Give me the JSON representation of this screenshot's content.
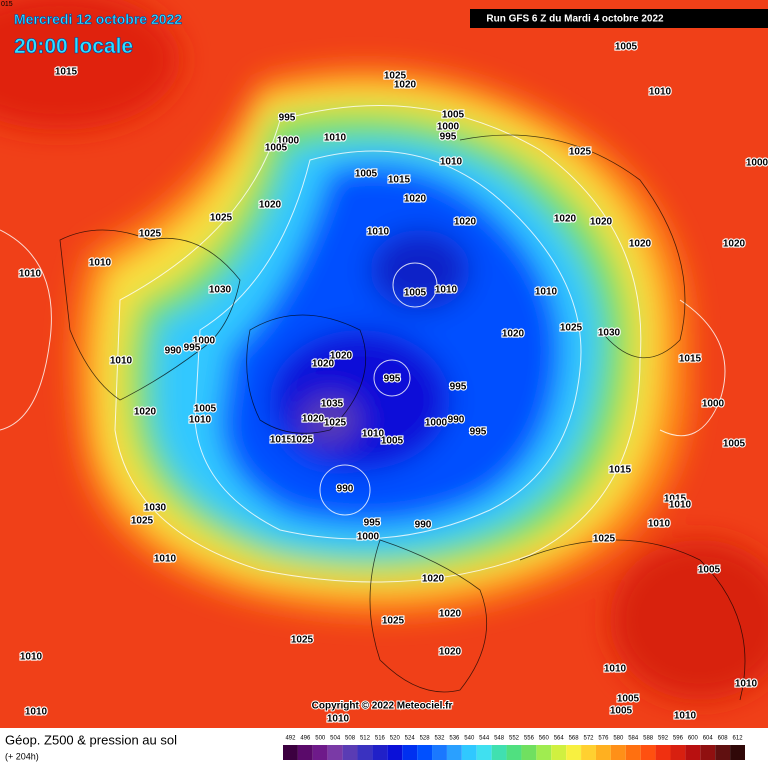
{
  "header": {
    "date": "Mercredi 12 octobre 2022",
    "time": "20:00 locale",
    "run": "Run GFS 6 Z du Mardi 4 octobre 2022",
    "corner": "015"
  },
  "copyright": "Copyright © 2022 Meteociel.fr",
  "legend": {
    "title": "Géop. Z500 & pression au sol",
    "subtitle": "(+ 204h)",
    "scale": [
      492,
      496,
      500,
      504,
      508,
      512,
      516,
      520,
      524,
      528,
      532,
      536,
      540,
      544,
      548,
      552,
      556,
      560,
      564,
      568,
      572,
      576,
      580,
      584,
      588,
      592,
      596,
      600,
      604,
      608,
      612
    ],
    "colors": [
      "#3c0040",
      "#5a0a6a",
      "#6e1a8a",
      "#7a3aa6",
      "#5a3cb4",
      "#3a32c0",
      "#2020c8",
      "#0a10d8",
      "#0030f0",
      "#0050ff",
      "#1a78ff",
      "#2aa0ff",
      "#30c8ff",
      "#40e0f0",
      "#40e0b0",
      "#50e080",
      "#70e060",
      "#a0ec50",
      "#d0f040",
      "#f8f040",
      "#ffd030",
      "#ffb020",
      "#ff9018",
      "#ff7010",
      "#ff5010",
      "#f03010",
      "#d82010",
      "#b81010",
      "#901010",
      "#601010",
      "#300808"
    ]
  },
  "isobars": [
    "1005",
    "1010",
    "1015",
    "1025",
    "1020",
    "995",
    "1005",
    "1000",
    "995",
    "1010",
    "1000",
    "1005",
    "1025",
    "1010",
    "1000",
    "1005",
    "1015",
    "1020",
    "1020",
    "1025",
    "1020",
    "1020",
    "1020",
    "1025",
    "1010",
    "1020",
    "1020",
    "1010",
    "1010",
    "1005",
    "1010",
    "1030",
    "1010",
    "1025",
    "1030",
    "1020",
    "1000",
    "990",
    "995",
    "1020",
    "1020",
    "1010",
    "1015",
    "995",
    "995",
    "1035",
    "1005",
    "1010",
    "1020",
    "1020",
    "990",
    "1000",
    "1025",
    "995",
    "1010",
    "1005",
    "1015",
    "1025",
    "1000",
    "1005",
    "1015",
    "990",
    "1030",
    "1025",
    "1015",
    "1010",
    "1010",
    "995",
    "990",
    "1000",
    "1025",
    "1010",
    "1005",
    "1020",
    "1025",
    "1020",
    "1025",
    "1020",
    "1010",
    "1010",
    "1010",
    "1005",
    "1005",
    "1010",
    "1010",
    "1010"
  ]
}
